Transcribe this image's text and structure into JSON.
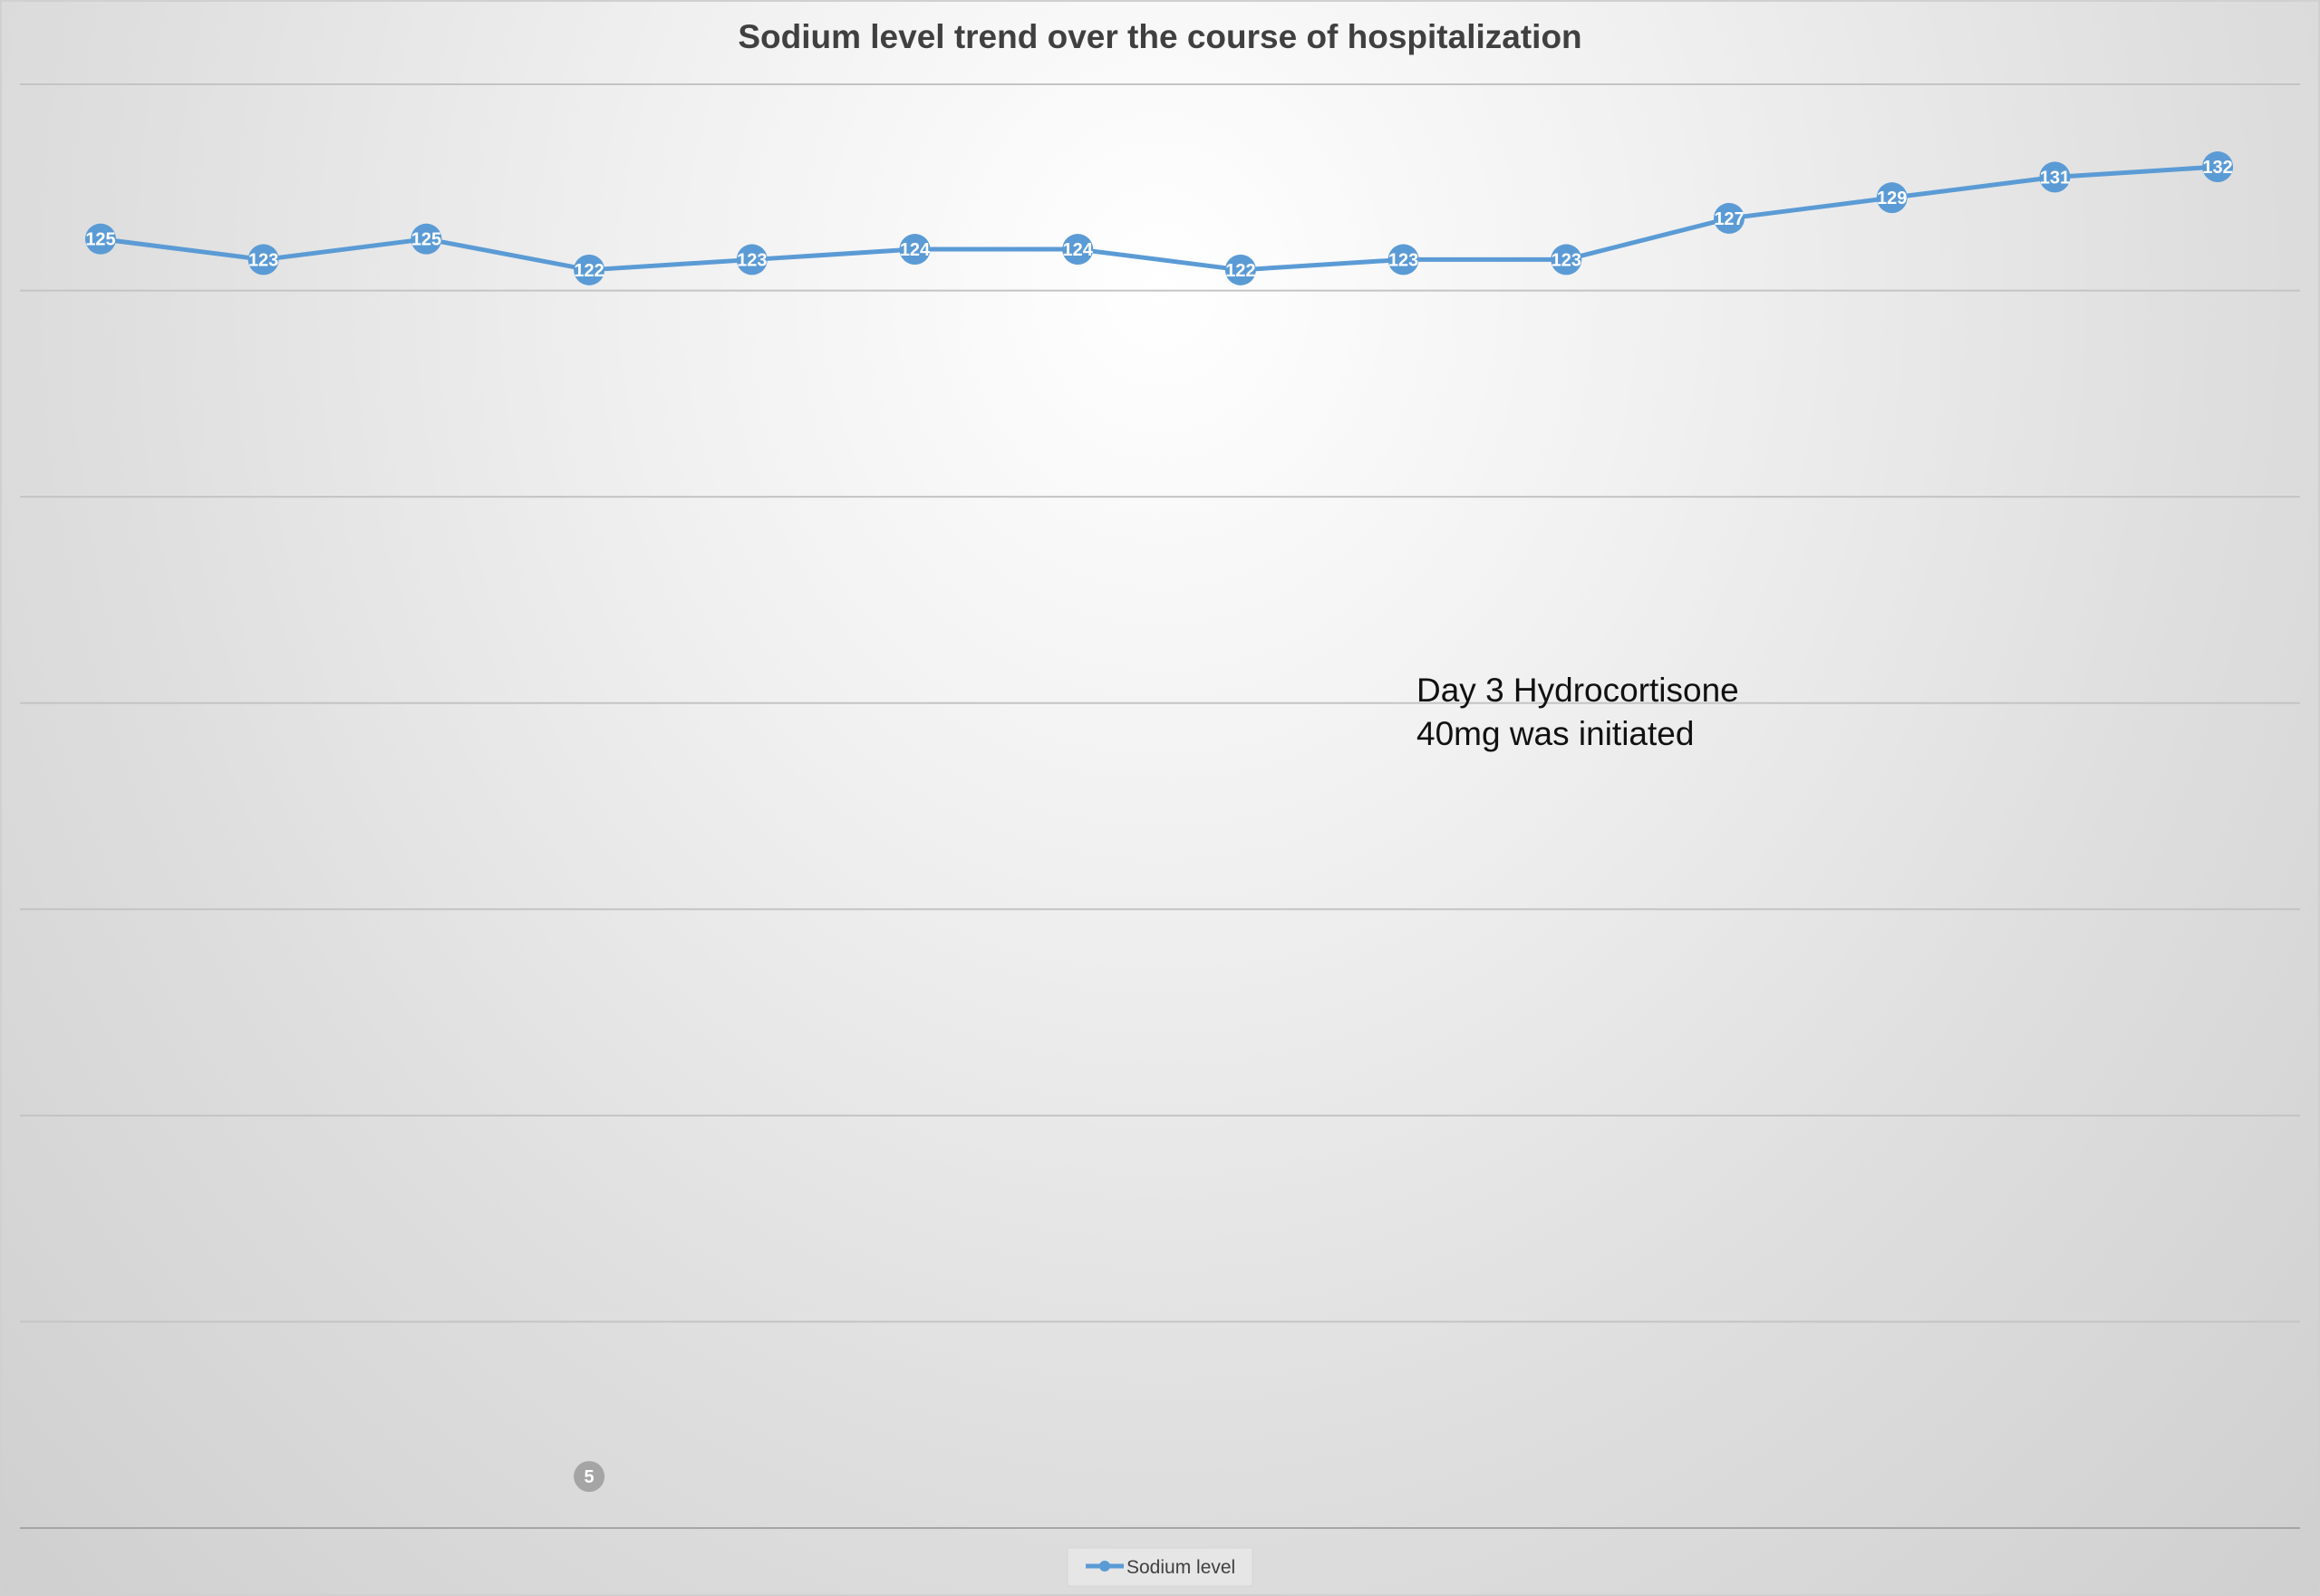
{
  "chart_data": {
    "type": "line",
    "title": "Sodium level trend over the course of hospitalization",
    "xlabel": "",
    "ylabel": "",
    "ylim": [
      0,
      140
    ],
    "grid": true,
    "legend_position": "bottom",
    "series": [
      {
        "name": "Sodium level",
        "color": "#5b9bd5",
        "values": [
          125,
          123,
          125,
          122,
          123,
          124,
          124,
          122,
          123,
          123,
          127,
          129,
          131,
          132
        ]
      }
    ],
    "extra_marker": {
      "index": 3,
      "value": 5,
      "label": "5",
      "color": "#a5a5a5"
    },
    "annotation": {
      "lines": [
        "Day 3 Hydrocortisone",
        "40mg was initiated"
      ]
    }
  }
}
